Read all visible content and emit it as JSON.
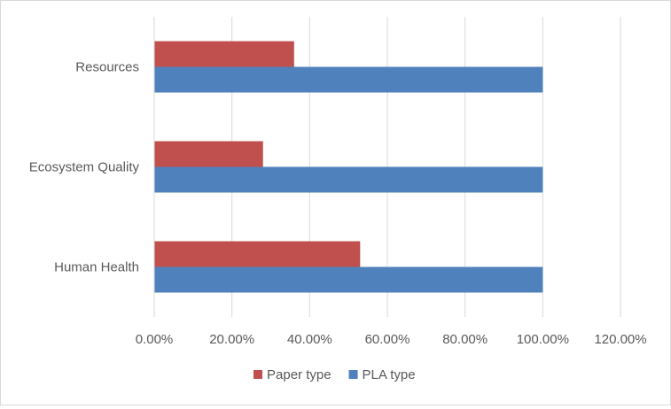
{
  "chart_data": {
    "type": "bar",
    "orientation": "horizontal",
    "title": "",
    "xlabel": "",
    "ylabel": "",
    "categories": [
      "Human Health",
      "Ecosystem Quality",
      "Resources"
    ],
    "series": [
      {
        "name": "Paper type",
        "color": "#c0504d",
        "values": [
          0.53,
          0.28,
          0.36
        ]
      },
      {
        "name": "PLA type",
        "color": "#4f81bd",
        "values": [
          1.0,
          1.0,
          1.0
        ]
      }
    ],
    "xlim": [
      0,
      1.2
    ],
    "xticks": [
      0,
      0.2,
      0.4,
      0.6,
      0.8,
      1.0,
      1.2
    ],
    "xtick_labels": [
      "0.00%",
      "20.00%",
      "40.00%",
      "60.00%",
      "80.00%",
      "100.00%",
      "120.00%"
    ],
    "grid": true,
    "legend_position": "bottom"
  }
}
